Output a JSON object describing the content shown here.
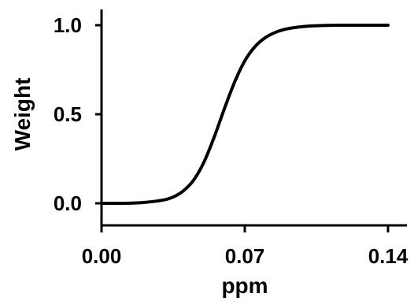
{
  "chart_data": {
    "type": "line",
    "title": "",
    "xlabel": "ppm",
    "ylabel": "Weight",
    "xlim": [
      0.0,
      0.14
    ],
    "ylim": [
      0.0,
      1.0
    ],
    "grid": false,
    "legend": "none",
    "x_ticks": [
      {
        "value": 0.0,
        "label": "0.00"
      },
      {
        "value": 0.07,
        "label": "0.07"
      },
      {
        "value": 0.14,
        "label": "0.14"
      }
    ],
    "y_ticks": [
      {
        "value": 0.0,
        "label": "0.0"
      },
      {
        "value": 0.5,
        "label": "0.5"
      },
      {
        "value": 1.0,
        "label": "1.0"
      }
    ],
    "series": [
      {
        "color": "#000000",
        "x": [
          0.0,
          0.01,
          0.02,
          0.03,
          0.035,
          0.04,
          0.045,
          0.05,
          0.055,
          0.06,
          0.065,
          0.07,
          0.075,
          0.08,
          0.085,
          0.09,
          0.095,
          0.1,
          0.105,
          0.11,
          0.12,
          0.13,
          0.14
        ],
        "y": [
          0.0,
          0.0,
          0.004,
          0.018,
          0.035,
          0.07,
          0.13,
          0.23,
          0.37,
          0.53,
          0.68,
          0.8,
          0.88,
          0.93,
          0.96,
          0.978,
          0.988,
          0.994,
          0.997,
          0.999,
          1.0,
          1.0,
          1.0
        ]
      }
    ]
  }
}
